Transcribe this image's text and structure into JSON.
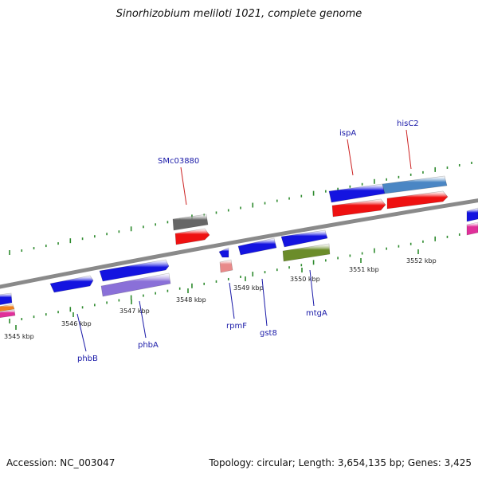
{
  "title": "Sinorhizobium meliloti 1021, complete genome",
  "accession": "Accession: NC_003047",
  "topology": "Topology: circular; Length: 3,654,135 bp; Genes: 3,425",
  "ticks": [
    {
      "label": "3545 kbp"
    },
    {
      "label": "3546 kbp"
    },
    {
      "label": "3547 kbp"
    },
    {
      "label": "3548 kbp"
    },
    {
      "label": "3549 kbp"
    },
    {
      "label": "3550 kbp"
    },
    {
      "label": "3551 kbp"
    },
    {
      "label": "3552 kbp"
    }
  ],
  "gene_labels": [
    {
      "name": "SMc03880",
      "color": "#cc2222"
    },
    {
      "name": "ispA",
      "color": "#cc2222"
    },
    {
      "name": "hisC2",
      "color": "#cc2222"
    },
    {
      "name": "phbB",
      "color": "#1a1aa8"
    },
    {
      "name": "phbA",
      "color": "#1a1aa8"
    },
    {
      "name": "rpmF",
      "color": "#1a1aa8"
    },
    {
      "name": "gst8",
      "color": "#1a1aa8"
    },
    {
      "name": "mtgA",
      "color": "#1a1aa8"
    }
  ],
  "colors": {
    "backbone": "#8a8a8a",
    "tick_dots": "#2d8a2d",
    "cds_blue": "#1414e0",
    "cds_red": "#ee1111",
    "gray_feature": "#666666",
    "purple_feature": "#8a70d8",
    "olive_feature": "#6b8c2a",
    "steelblue_feature": "#4a86c4",
    "pink_feature": "#e88a8a",
    "magenta_feature": "#e0309a"
  }
}
